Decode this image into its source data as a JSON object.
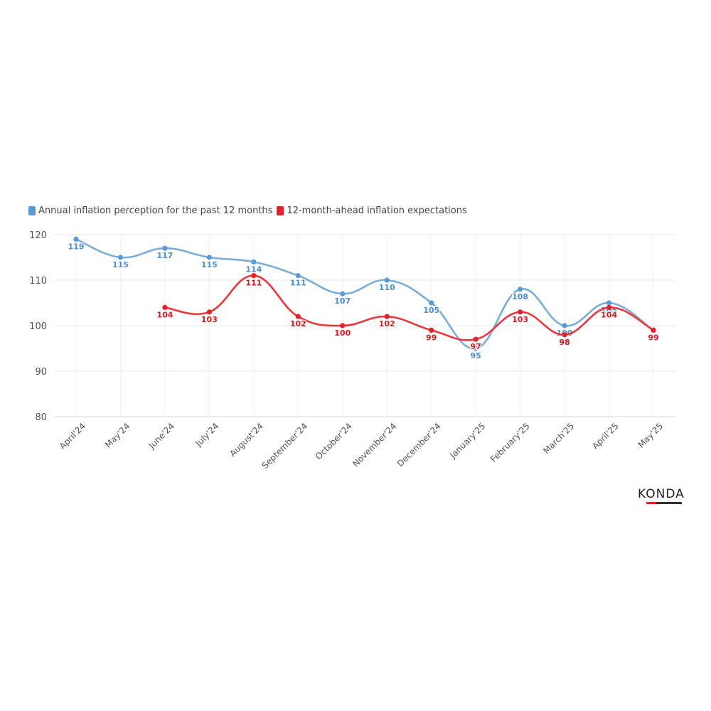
{
  "chart_data": {
    "type": "line",
    "title": "",
    "xlabel": "",
    "ylabel": "",
    "ylim": [
      80,
      120
    ],
    "yticks": [
      80,
      90,
      100,
      110,
      120
    ],
    "grid": true,
    "legend_position": "top-left",
    "categories": [
      "April'24",
      "May'24",
      "June'24",
      "July'24",
      "August'24",
      "September'24",
      "October'24",
      "November'24",
      "December'24",
      "January'25",
      "February'25",
      "March'25",
      "April'25",
      "May'25"
    ],
    "series": [
      {
        "name": "Annual inflation perception for the past 12 months",
        "color": "#7aaed8",
        "marker_color": "#5b9bd5",
        "label_color": "#4a8fcc",
        "values": [
          119,
          115,
          117,
          115,
          114,
          111,
          107,
          110,
          105,
          95,
          108,
          100,
          105,
          99
        ]
      },
      {
        "name": "12-month-ahead inflation expectations",
        "color": "#e8373d",
        "marker_color": "#e4202a",
        "label_color": "#d61a22",
        "values": [
          null,
          null,
          104,
          103,
          111,
          102,
          100,
          102,
          99,
          97,
          103,
          98,
          104,
          99
        ]
      }
    ]
  },
  "logo": {
    "text": "KONDA",
    "icon": "konda-logo"
  }
}
